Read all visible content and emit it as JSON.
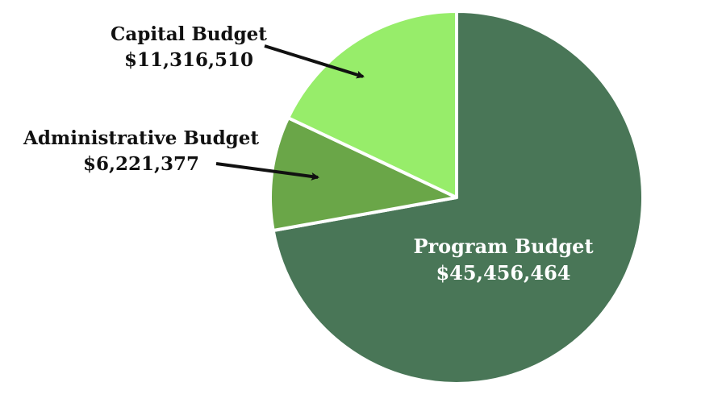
{
  "chart_data": {
    "type": "pie",
    "slices": [
      {
        "label": "Program Budget",
        "value_text": "$45,456,464",
        "value": 45456464,
        "color": "#497657",
        "label_color": "#ffffff"
      },
      {
        "label": "Administrative Budget",
        "value_text": "$6,221,377",
        "value": 6221377,
        "color": "#6aa648",
        "label_color": "#111111"
      },
      {
        "label": "Capital Budget",
        "value_text": "$11,316,510",
        "value": 11316510,
        "color": "#97ed6a",
        "label_color": "#111111"
      }
    ],
    "start_angle_deg": 0,
    "direction": "clockwise",
    "edge_color": "#ffffff"
  }
}
